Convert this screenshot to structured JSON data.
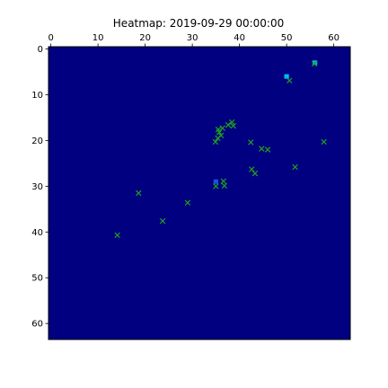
{
  "chart_data": {
    "type": "heatmap",
    "title": "Heatmap: 2019-09-29 00:00:00",
    "grid": false,
    "xlim": [
      -0.5,
      63.5
    ],
    "ylim": [
      63.5,
      -0.5
    ],
    "x_ticks": [
      0,
      10,
      20,
      30,
      40,
      50,
      60
    ],
    "y_ticks": [
      0,
      10,
      20,
      30,
      40,
      50,
      60
    ],
    "x_axis_position": "top",
    "y_axis_inverted": true,
    "background_color": "#000080",
    "hot_cells": [
      {
        "x": 50,
        "y": 6,
        "color": "#00b8ff"
      },
      {
        "x": 56,
        "y": 3,
        "color": "#00b8ff"
      },
      {
        "x": 35,
        "y": 29,
        "color": "#1f4fd8"
      }
    ],
    "marker_color": "#1fa01f",
    "markers": [
      {
        "x": 55.9,
        "y": 3.2
      },
      {
        "x": 50.6,
        "y": 6.9
      },
      {
        "x": 38.4,
        "y": 16.0
      },
      {
        "x": 37.6,
        "y": 16.6
      },
      {
        "x": 38.7,
        "y": 16.8
      },
      {
        "x": 36.4,
        "y": 17.3
      },
      {
        "x": 35.5,
        "y": 17.6
      },
      {
        "x": 35.7,
        "y": 18.2
      },
      {
        "x": 36.1,
        "y": 18.9
      },
      {
        "x": 35.4,
        "y": 19.5
      },
      {
        "x": 34.9,
        "y": 20.3
      },
      {
        "x": 42.4,
        "y": 20.4
      },
      {
        "x": 57.9,
        "y": 20.3
      },
      {
        "x": 44.7,
        "y": 21.8
      },
      {
        "x": 46.0,
        "y": 22.0
      },
      {
        "x": 51.8,
        "y": 25.8
      },
      {
        "x": 42.6,
        "y": 26.3
      },
      {
        "x": 43.3,
        "y": 27.2
      },
      {
        "x": 36.6,
        "y": 28.9
      },
      {
        "x": 36.8,
        "y": 29.9
      },
      {
        "x": 35.0,
        "y": 30.0
      },
      {
        "x": 18.6,
        "y": 31.5
      },
      {
        "x": 29.0,
        "y": 33.6
      },
      {
        "x": 23.7,
        "y": 37.6
      },
      {
        "x": 14.1,
        "y": 40.7
      }
    ]
  }
}
